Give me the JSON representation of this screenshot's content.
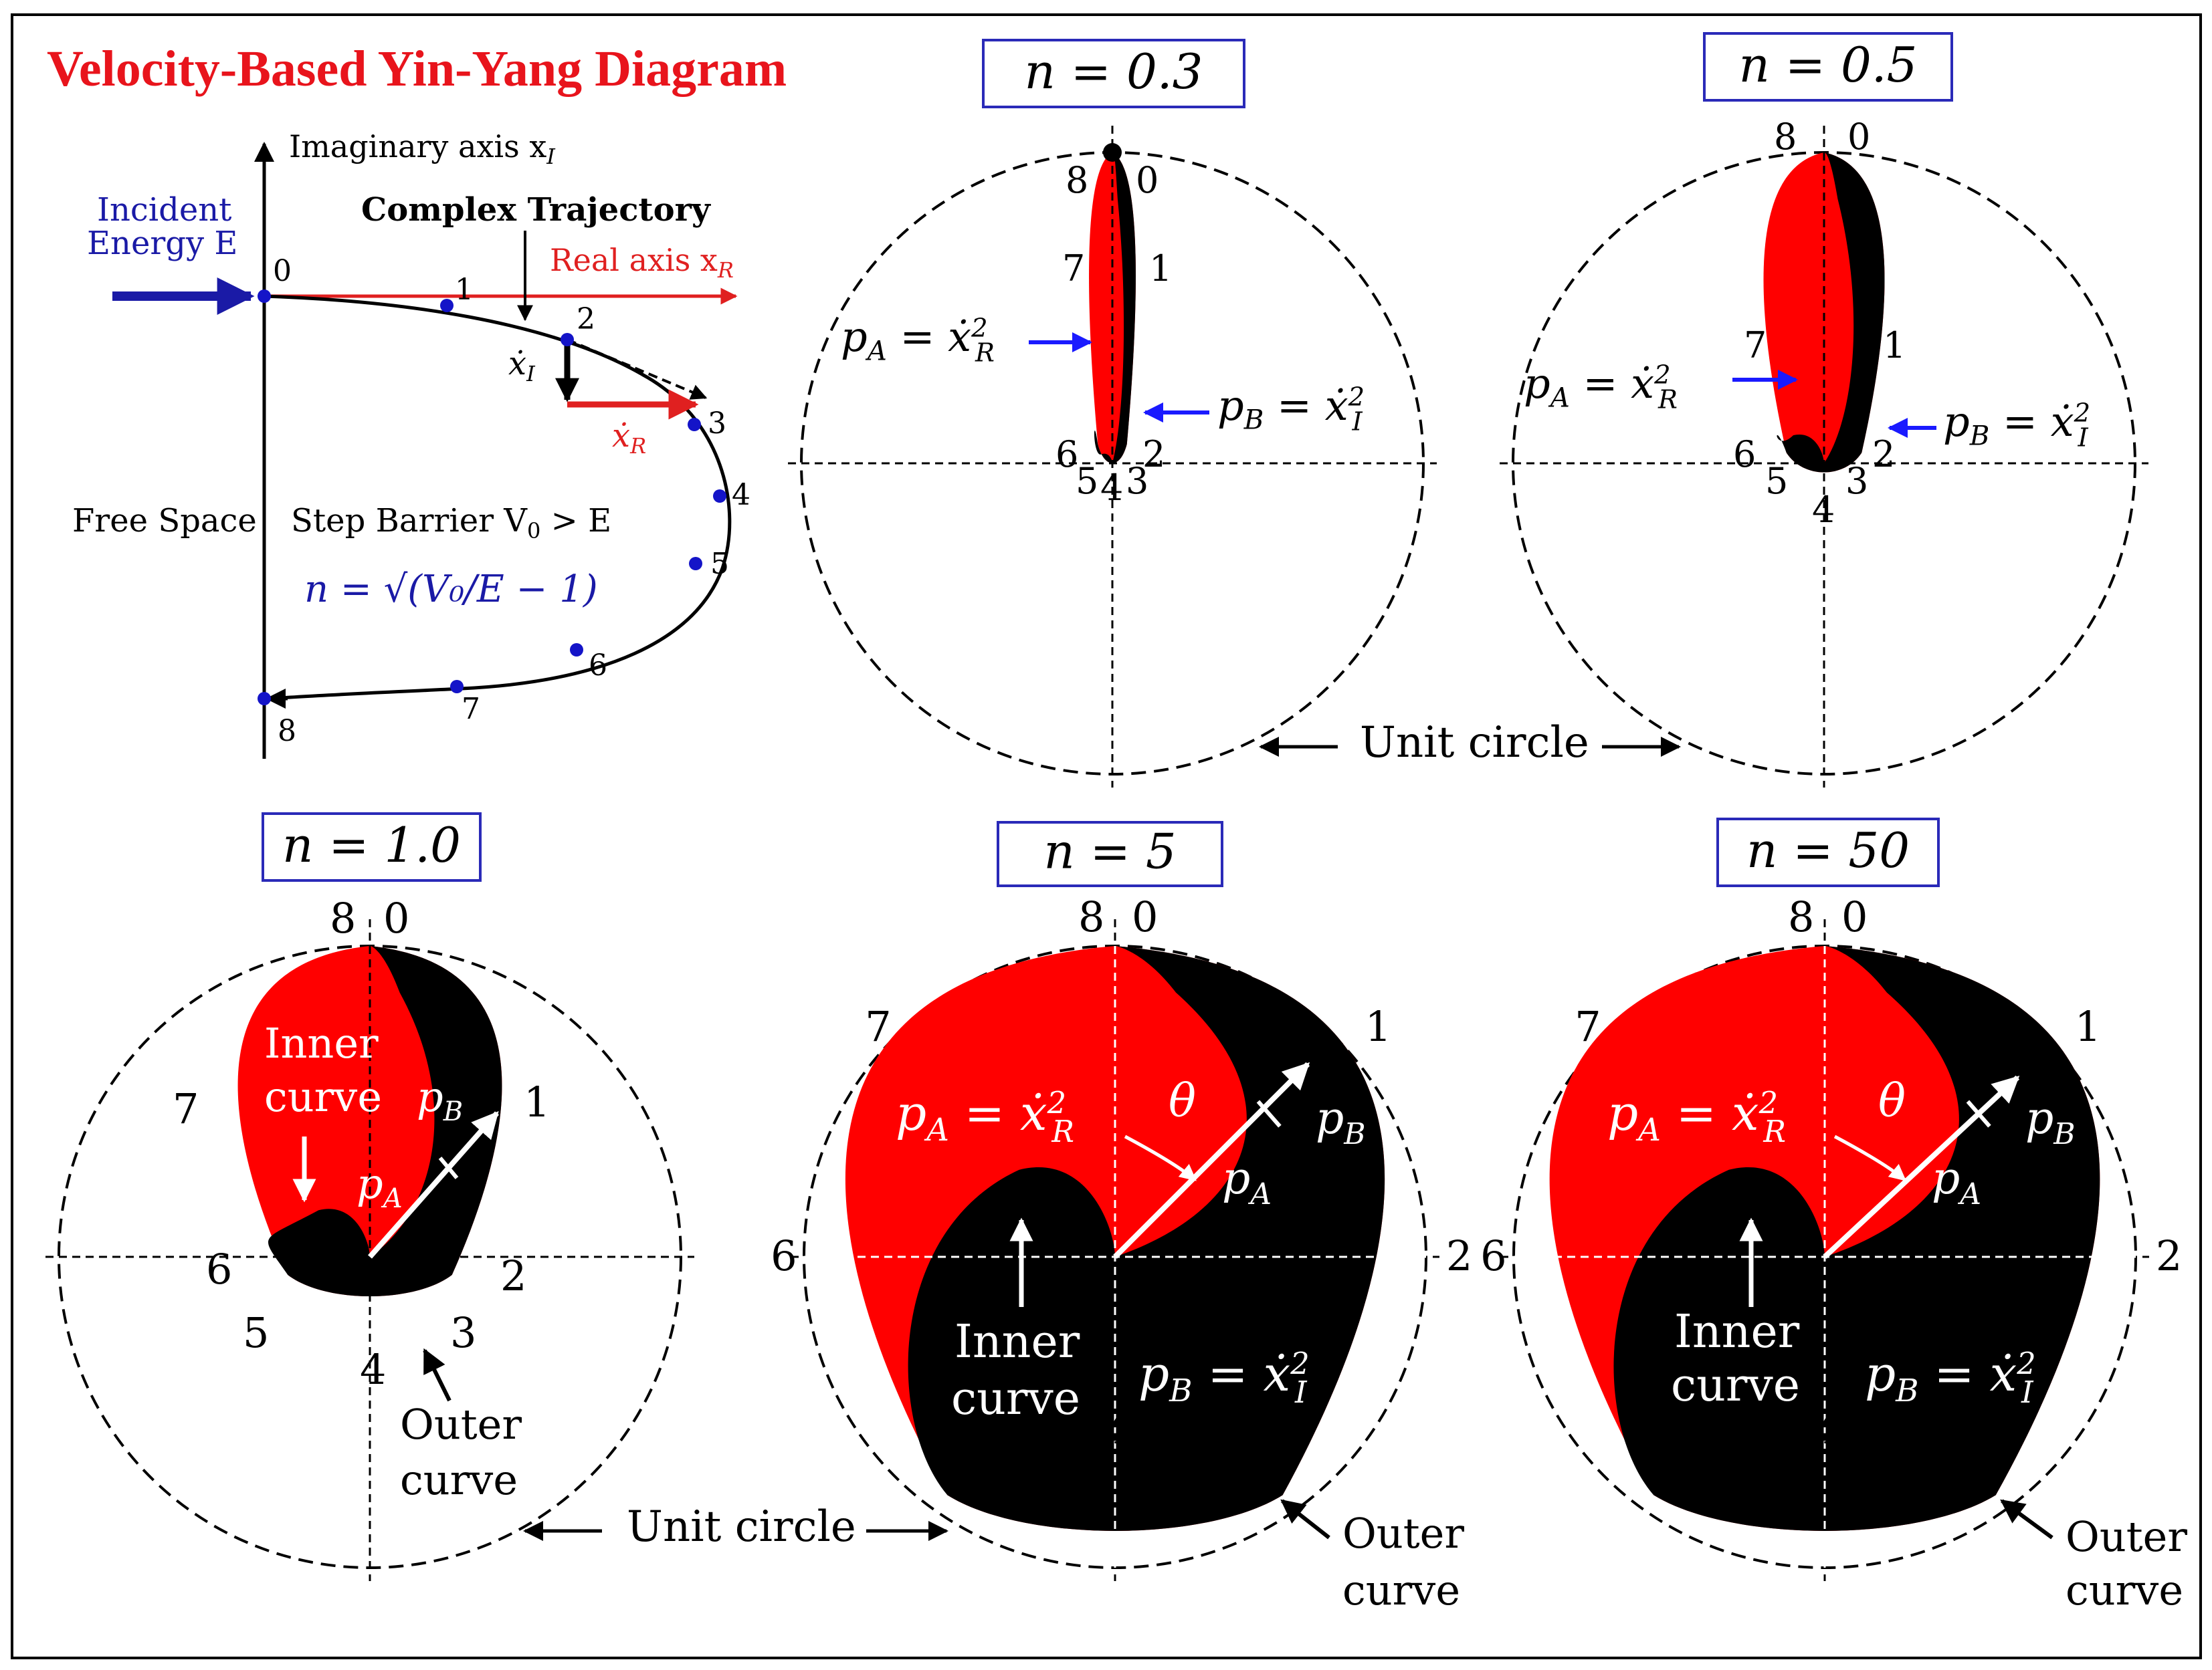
{
  "title": "Velocity-Based Yin-Yang Diagram",
  "colors": {
    "red": "#ff0000",
    "black": "#000000",
    "blue": "#1a1aa6",
    "axis_red": "#e02020",
    "title_red": "#e8141c",
    "box_border": "#2a2ab8",
    "point_blue": "#1414c8"
  },
  "trajectory": {
    "imag_axis": "Imaginary axis x",
    "imag_axis_sub": "I",
    "real_axis": "Real axis x",
    "real_axis_sub": "R",
    "incident_line1": "Incident",
    "incident_line2": "Energy E",
    "complex_trajectory": "Complex Trajectory",
    "free_space": "Free Space",
    "step_barrier": "Step Barrier V",
    "step_barrier_sub": "0",
    "step_barrier_rest": " > E",
    "n_formula": "n = √(V₀/E − 1)",
    "xdot_I": "ẋ",
    "xdot_I_sub": "I",
    "xdot_R": "ẋ",
    "xdot_R_sub": "R",
    "points": [
      "0",
      "1",
      "2",
      "3",
      "4",
      "5",
      "6",
      "7",
      "8"
    ]
  },
  "panels": [
    {
      "id": "n03",
      "label": "n = 0.3",
      "n": 0.3
    },
    {
      "id": "n05",
      "label": "n = 0.5",
      "n": 0.5
    },
    {
      "id": "n10",
      "label": "n = 1.0",
      "n": 1.0
    },
    {
      "id": "n5",
      "label": "n = 5",
      "n": 5
    },
    {
      "id": "n50",
      "label": "n = 50",
      "n": 50
    }
  ],
  "labels": {
    "pA_eq": "p",
    "pA_sub": "A",
    "pB_sub": "B",
    "eq_xR": " = ẋ",
    "sub_R": "R",
    "sub_I": "I",
    "sup_2": "2",
    "pA": "p",
    "pB": "p",
    "theta": "θ",
    "inner_curve_1": "Inner",
    "inner_curve_2": "curve",
    "outer_curve_1": "Outer",
    "outer_curve_2": "curve",
    "unit_circle": "Unit circle"
  }
}
